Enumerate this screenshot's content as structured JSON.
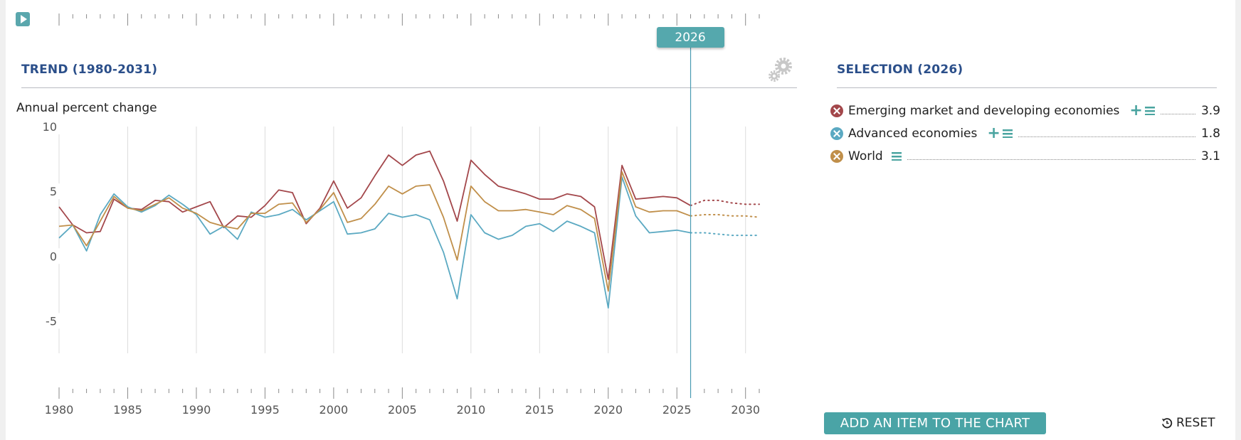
{
  "trend_title": "TREND (1980-2031)",
  "selection_title": "SELECTION (2026)",
  "selected_year_label": "2026",
  "add_item_label": "ADD AN ITEM TO THE CHART",
  "reset_label": "RESET",
  "icons": {
    "play": "play-icon",
    "settings": "gear-icon",
    "remove": "close-icon",
    "add": "plus-icon",
    "menu": "menu-icon",
    "reset": "reset-icon"
  },
  "colors": {
    "accent": "#4aa4a6",
    "title": "#2b4f8a",
    "series_emerging": "#a3474b",
    "series_advanced": "#5ba9c2",
    "series_world": "#c08f4a"
  },
  "legend": [
    {
      "name": "Emerging market and developing economies",
      "value": "3.9",
      "color": "#a3474b",
      "has_add": true
    },
    {
      "name": "Advanced economies",
      "value": "1.8",
      "color": "#5ba9c2",
      "has_add": true
    },
    {
      "name": "World",
      "value": "3.1",
      "color": "#c08f4a",
      "has_add": false
    }
  ],
  "chart_data": {
    "type": "line",
    "ylabel": "Annual percent change",
    "xlabel": "",
    "y_ticks": [
      "10",
      "5",
      "0",
      "-5"
    ],
    "x_ticks": [
      "1980",
      "1985",
      "1990",
      "1995",
      "2000",
      "2005",
      "2010",
      "2015",
      "2020",
      "2025",
      "2030"
    ],
    "ylim": [
      -7.5,
      10
    ],
    "xlim": [
      1980,
      2031
    ],
    "grid": "vertical",
    "selected_year": 2026,
    "projection_starts_after": 2026,
    "x": [
      1980,
      1981,
      1982,
      1983,
      1984,
      1985,
      1986,
      1987,
      1988,
      1989,
      1990,
      1991,
      1992,
      1993,
      1994,
      1995,
      1996,
      1997,
      1998,
      1999,
      2000,
      2001,
      2002,
      2003,
      2004,
      2005,
      2006,
      2007,
      2008,
      2009,
      2010,
      2011,
      2012,
      2013,
      2014,
      2015,
      2016,
      2017,
      2018,
      2019,
      2020,
      2021,
      2022,
      2023,
      2024,
      2025,
      2026,
      2027,
      2028,
      2029,
      2030,
      2031
    ],
    "series": [
      {
        "name": "Emerging market and developing economies",
        "color": "#a3474b",
        "values": [
          3.8,
          2.4,
          1.8,
          1.9,
          4.4,
          3.7,
          3.6,
          4.3,
          4.2,
          3.4,
          3.8,
          4.2,
          2.2,
          3.1,
          3.0,
          3.9,
          5.1,
          4.9,
          2.5,
          3.7,
          5.8,
          3.7,
          4.5,
          6.2,
          7.8,
          7.0,
          7.8,
          8.1,
          5.8,
          2.7,
          7.4,
          6.3,
          5.4,
          5.1,
          4.8,
          4.4,
          4.4,
          4.8,
          4.6,
          3.8,
          -1.8,
          7.0,
          4.4,
          4.5,
          4.6,
          4.5,
          3.9,
          4.3,
          4.3,
          4.1,
          4.0,
          4.0
        ]
      },
      {
        "name": "Advanced economies",
        "color": "#5ba9c2",
        "values": [
          1.4,
          2.4,
          0.4,
          3.2,
          4.8,
          3.8,
          3.4,
          3.9,
          4.7,
          4.0,
          3.2,
          1.7,
          2.3,
          1.3,
          3.4,
          3.0,
          3.2,
          3.6,
          2.8,
          3.5,
          4.2,
          1.7,
          1.8,
          2.1,
          3.3,
          3.0,
          3.2,
          2.8,
          0.3,
          -3.3,
          3.2,
          1.8,
          1.3,
          1.6,
          2.3,
          2.5,
          1.9,
          2.7,
          2.3,
          1.8,
          -4.0,
          6.1,
          3.1,
          1.8,
          1.9,
          2.0,
          1.8,
          1.8,
          1.7,
          1.6,
          1.6,
          1.6
        ]
      },
      {
        "name": "World",
        "color": "#c08f4a",
        "values": [
          2.3,
          2.4,
          0.8,
          2.7,
          4.6,
          3.7,
          3.5,
          4.0,
          4.5,
          3.7,
          3.3,
          2.6,
          2.3,
          2.1,
          3.3,
          3.3,
          4.0,
          4.1,
          2.6,
          3.6,
          4.9,
          2.6,
          2.9,
          4.0,
          5.4,
          4.8,
          5.4,
          5.5,
          3.0,
          -0.3,
          5.4,
          4.2,
          3.5,
          3.5,
          3.6,
          3.4,
          3.2,
          3.9,
          3.6,
          2.9,
          -2.7,
          6.5,
          3.8,
          3.4,
          3.5,
          3.5,
          3.1,
          3.2,
          3.2,
          3.1,
          3.1,
          3.0
        ]
      }
    ]
  }
}
